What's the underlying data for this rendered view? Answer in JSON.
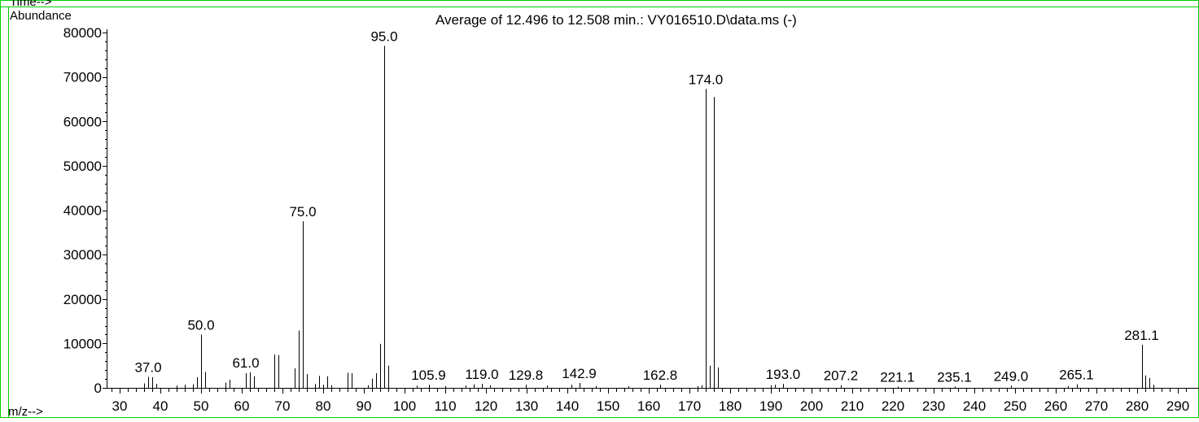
{
  "window": {
    "time_label_partial": "Time-->"
  },
  "chart_data": {
    "type": "bar",
    "title": "Average of 12.496 to 12.508 min.: VY016510.D\\data.ms (-)",
    "ylabel": "Abundance",
    "xlabel": "m/z-->",
    "xlim": [
      26,
      293
    ],
    "ylim": [
      0,
      80000
    ],
    "yticks": [
      0,
      10000,
      20000,
      30000,
      40000,
      50000,
      60000,
      70000,
      80000
    ],
    "xticks": [
      30,
      40,
      50,
      60,
      70,
      80,
      90,
      100,
      110,
      120,
      130,
      140,
      150,
      160,
      170,
      180,
      190,
      200,
      210,
      220,
      230,
      240,
      250,
      260,
      270,
      280,
      290
    ],
    "colors": {
      "frame": "#00cc00",
      "ink": "#000000"
    },
    "peaks": [
      [
        36,
        1000
      ],
      [
        37,
        2500
      ],
      [
        38,
        2400
      ],
      [
        39,
        900
      ],
      [
        44,
        500
      ],
      [
        46,
        700
      ],
      [
        48,
        800
      ],
      [
        49,
        2400
      ],
      [
        50,
        12000
      ],
      [
        51,
        3600
      ],
      [
        56,
        1200
      ],
      [
        57,
        1800
      ],
      [
        61,
        3300
      ],
      [
        62,
        3500
      ],
      [
        63,
        2600
      ],
      [
        68,
        7500
      ],
      [
        69,
        7400
      ],
      [
        73,
        4400
      ],
      [
        74,
        12900
      ],
      [
        75,
        37500
      ],
      [
        76,
        3100
      ],
      [
        78,
        900
      ],
      [
        79,
        2700
      ],
      [
        80,
        700
      ],
      [
        81,
        2600
      ],
      [
        82,
        600
      ],
      [
        86,
        3400
      ],
      [
        87,
        3300
      ],
      [
        91,
        600
      ],
      [
        92,
        2100
      ],
      [
        93,
        3300
      ],
      [
        94,
        9900
      ],
      [
        95,
        77000
      ],
      [
        96,
        5000
      ],
      [
        103,
        500
      ],
      [
        105.9,
        700
      ],
      [
        110,
        400
      ],
      [
        115,
        500
      ],
      [
        117,
        800
      ],
      [
        119,
        900
      ],
      [
        121,
        600
      ],
      [
        129.8,
        700
      ],
      [
        135,
        500
      ],
      [
        141,
        700
      ],
      [
        142.9,
        1100
      ],
      [
        147,
        400
      ],
      [
        155,
        400
      ],
      [
        162.8,
        700
      ],
      [
        172,
        400
      ],
      [
        173,
        600
      ],
      [
        174,
        67300
      ],
      [
        175,
        5000
      ],
      [
        176,
        65500
      ],
      [
        177,
        4600
      ],
      [
        190,
        600
      ],
      [
        191,
        700
      ],
      [
        193,
        900
      ],
      [
        207.2,
        600
      ],
      [
        221.1,
        300
      ],
      [
        235.1,
        300
      ],
      [
        249,
        500
      ],
      [
        263,
        400
      ],
      [
        265.1,
        800
      ],
      [
        281.1,
        9700
      ],
      [
        282,
        2800
      ],
      [
        283,
        2200
      ],
      [
        284,
        700
      ]
    ],
    "data_labels": [
      {
        "x": 37.0,
        "y": 2500,
        "text": "37.0"
      },
      {
        "x": 50.0,
        "y": 12000,
        "text": "50.0"
      },
      {
        "x": 61.0,
        "y": 3500,
        "text": "61.0"
      },
      {
        "x": 75.0,
        "y": 37500,
        "text": "75.0"
      },
      {
        "x": 95.0,
        "y": 77000,
        "text": "95.0"
      },
      {
        "x": 105.9,
        "y": 700,
        "text": "105.9"
      },
      {
        "x": 119.0,
        "y": 900,
        "text": "119.0"
      },
      {
        "x": 129.8,
        "y": 700,
        "text": "129.8"
      },
      {
        "x": 142.9,
        "y": 1100,
        "text": "142.9"
      },
      {
        "x": 162.8,
        "y": 700,
        "text": "162.8"
      },
      {
        "x": 174.0,
        "y": 67300,
        "text": "174.0"
      },
      {
        "x": 193.0,
        "y": 900,
        "text": "193.0"
      },
      {
        "x": 207.2,
        "y": 600,
        "text": "207.2"
      },
      {
        "x": 221.1,
        "y": 300,
        "text": "221.1"
      },
      {
        "x": 235.1,
        "y": 300,
        "text": "235.1"
      },
      {
        "x": 249.0,
        "y": 500,
        "text": "249.0"
      },
      {
        "x": 265.1,
        "y": 800,
        "text": "265.1"
      },
      {
        "x": 281.1,
        "y": 9700,
        "text": "281.1"
      }
    ]
  }
}
